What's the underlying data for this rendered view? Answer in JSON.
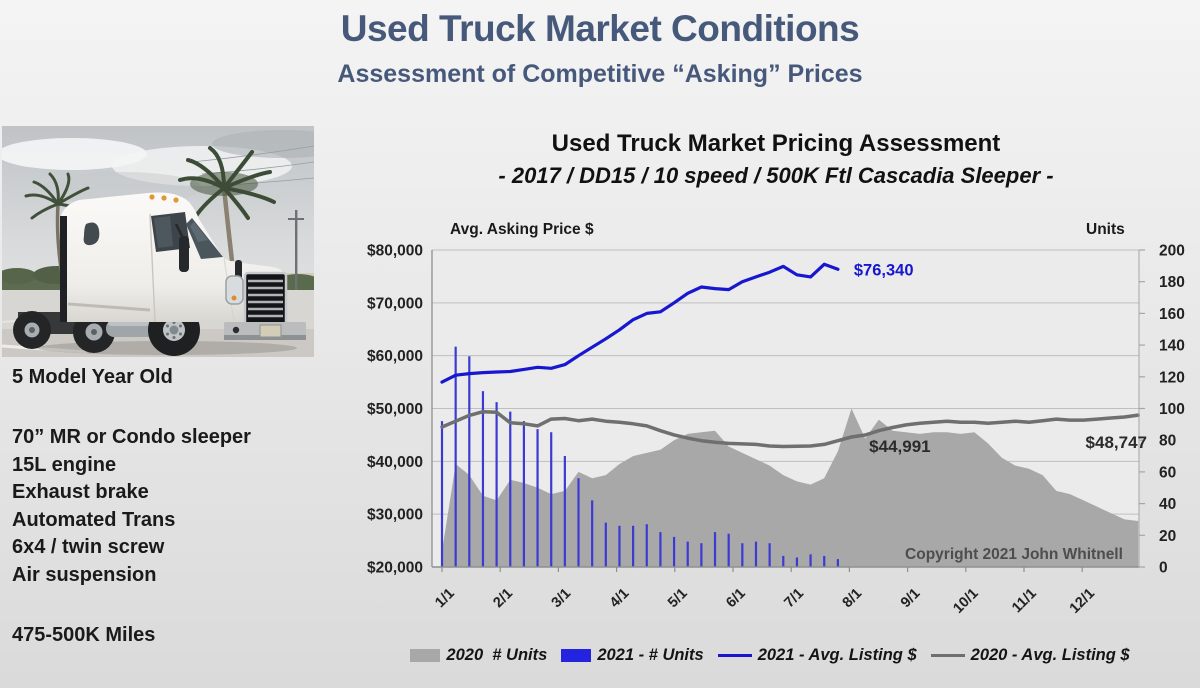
{
  "slide": {
    "title": "Used Truck Market Conditions",
    "subtitle": "Assessment of Competitive “Asking” Prices"
  },
  "specs": {
    "age": "5 Model Year Old",
    "features": [
      "70” MR or Condo sleeper",
      "15L engine",
      "Exhaust brake",
      "Automated Trans",
      "6x4 / twin screw",
      "Air suspension"
    ],
    "mileage": "475-500K Miles"
  },
  "truck_photo": {
    "description": "white Freightliner Cascadia sleeper tractor, front three-quarter view, palm trees and cloudy sky behind"
  },
  "chart_data": {
    "type": "combo",
    "title": "Used Truck Market Pricing Assessment",
    "subtitle": "- 2017 / DD15 / 10 speed / 500K Ftl Cascadia Sleeper -",
    "x_unit": "weeks, January through December",
    "x_tick_labels": [
      "1/1",
      "2/1",
      "3/1",
      "4/1",
      "5/1",
      "6/1",
      "7/1",
      "8/1",
      "9/1",
      "10/1",
      "11/1",
      "12/1"
    ],
    "price_axis": {
      "title": "Avg. Asking Price $",
      "side": "left",
      "min": 20000,
      "max": 80000,
      "step": 10000,
      "tick_labels": [
        "$80,000",
        "$70,000",
        "$60,000",
        "$50,000",
        "$40,000",
        "$30,000",
        "$20,000"
      ]
    },
    "units_axis": {
      "title": "Units",
      "side": "right",
      "min": 0,
      "max": 200,
      "step": 20,
      "tick_labels": [
        "200",
        "180",
        "160",
        "140",
        "120",
        "100",
        "80",
        "60",
        "40",
        "20",
        "0"
      ]
    },
    "grid": "horizontal",
    "series": [
      {
        "name": "2020  # Units",
        "type": "area",
        "axis": "units",
        "color": "#a8a8a8",
        "values": [
          10,
          65,
          58,
          45,
          42,
          55,
          53,
          50,
          46,
          48,
          60,
          56,
          58,
          65,
          70,
          72,
          74,
          80,
          84,
          85,
          86,
          76,
          72,
          68,
          64,
          58,
          54,
          52,
          56,
          73,
          100,
          81,
          93,
          86,
          85,
          84,
          85,
          85,
          84,
          85,
          78,
          69,
          64,
          62,
          58,
          48,
          46,
          42,
          38,
          34,
          30,
          29
        ]
      },
      {
        "name": "2021 - # Units",
        "type": "bar",
        "axis": "units",
        "color": "#3b3bd4",
        "values": [
          92,
          139,
          133,
          111,
          104,
          98,
          92,
          87,
          85,
          70,
          56,
          42,
          28,
          26,
          26,
          27,
          22,
          19,
          16,
          15,
          22,
          21,
          15,
          16,
          15,
          7,
          6,
          8,
          7,
          5
        ]
      },
      {
        "name": "2021 - Avg. Listing $",
        "type": "line",
        "axis": "price",
        "color": "#1717cf",
        "values": [
          55000,
          56300,
          56600,
          56800,
          56900,
          57000,
          57400,
          57800,
          57600,
          58300,
          60000,
          61600,
          63200,
          64900,
          66800,
          68000,
          68300,
          70000,
          71800,
          73000,
          72700,
          72500,
          74000,
          74900,
          75800,
          76900,
          75300,
          74900,
          77300,
          76340
        ]
      },
      {
        "name": "2020 - Avg. Listing $",
        "type": "line",
        "axis": "price",
        "color": "#6f6f6f",
        "values": [
          46500,
          47600,
          48700,
          49400,
          49300,
          47300,
          47100,
          46700,
          48000,
          48100,
          47700,
          48000,
          47600,
          47400,
          47100,
          46700,
          45800,
          45000,
          44400,
          43900,
          43600,
          43400,
          43300,
          43200,
          42900,
          42800,
          42850,
          42900,
          43200,
          43900,
          44600,
          44991,
          45800,
          46400,
          46900,
          47200,
          47400,
          47600,
          47400,
          47400,
          47200,
          47400,
          47600,
          47400,
          47700,
          48000,
          47800,
          47800,
          48000,
          48200,
          48400,
          48747
        ]
      }
    ],
    "annotations": [
      {
        "id": "price-2021-end",
        "text": "$76,340"
      },
      {
        "id": "price-2020-low",
        "text": "$44,991"
      },
      {
        "id": "price-2020-end",
        "text": "$48,747"
      },
      {
        "id": "copyright",
        "text": "Copyright 2021 John Whitnell"
      }
    ]
  },
  "legend": {
    "items": [
      {
        "label": "2020  # Units",
        "swatch": "area",
        "color": "#a8a8a8"
      },
      {
        "label": "2021 - # Units",
        "swatch": "bar",
        "color": "#2424e0"
      },
      {
        "label": "2021 - Avg. Listing $",
        "swatch": "line",
        "color": "#1717cf"
      },
      {
        "label": "2020 - Avg. Listing $",
        "swatch": "line",
        "color": "#6f6f6f"
      }
    ]
  },
  "colors": {
    "slide_title": "#47597b",
    "blue_line": "#1717cf",
    "blue_bar": "#3b3bd4",
    "gray_area": "#a8a8a8",
    "gray_line": "#6f6f6f",
    "annotation_dark": "#2b2b2b",
    "copyright_text": "#4d4d4d",
    "gridline": "#bfbfbf",
    "axis_line": "#8f8f8f",
    "tick_text": "#222222"
  }
}
